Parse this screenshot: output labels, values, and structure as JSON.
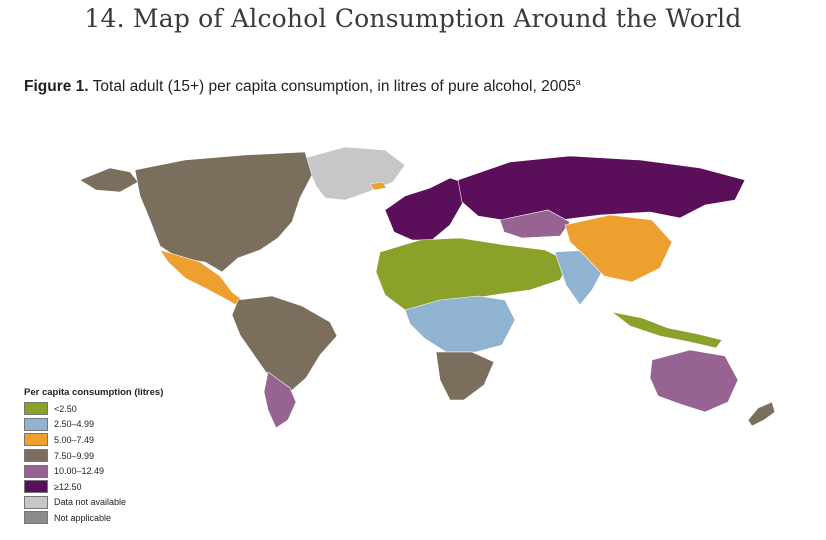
{
  "page": {
    "title": "14. Map of Alcohol Consumption Around the World"
  },
  "figure": {
    "label": "Figure 1.",
    "caption": " Total adult (15+) per capita consumption, in litres of pure alcohol, 2005",
    "footnote_mark": "a"
  },
  "legend": {
    "title": "Per capita consumption (litres)",
    "items": [
      {
        "label": "<2.50",
        "color": "#8aa12a"
      },
      {
        "label": "2.50–4.99",
        "color": "#8fb3d0"
      },
      {
        "label": "5.00–7.49",
        "color": "#eda030"
      },
      {
        "label": "7.50–9.99",
        "color": "#7b6e5d"
      },
      {
        "label": "10.00–12.49",
        "color": "#976392"
      },
      {
        "label": "≥12.50",
        "color": "#5b0f5a"
      },
      {
        "label": "Data not available",
        "color": "#c7c7c9"
      },
      {
        "label": "Not applicable",
        "color": "#8c8c8c"
      }
    ]
  },
  "map_regions": [
    {
      "name": "canada-usa",
      "category": "7.50–9.99"
    },
    {
      "name": "alaska",
      "category": "7.50–9.99"
    },
    {
      "name": "greenland",
      "category": "Data not available"
    },
    {
      "name": "mexico",
      "category": "5.00–7.49"
    },
    {
      "name": "south-america",
      "category": "7.50–9.99"
    },
    {
      "name": "argentina-chile",
      "category": "10.00–12.49"
    },
    {
      "name": "western-europe",
      "category": "≥12.50"
    },
    {
      "name": "russia",
      "category": "≥12.50"
    },
    {
      "name": "kazakhstan",
      "category": "10.00–12.49"
    },
    {
      "name": "north-africa-middle-east",
      "category": "<2.50"
    },
    {
      "name": "central-africa",
      "category": "2.50–4.99"
    },
    {
      "name": "southern-africa",
      "category": "7.50–9.99"
    },
    {
      "name": "india",
      "category": "2.50–4.99"
    },
    {
      "name": "china",
      "category": "5.00–7.49"
    },
    {
      "name": "indonesia",
      "category": "<2.50"
    },
    {
      "name": "australia",
      "category": "10.00–12.49"
    },
    {
      "name": "new-zealand",
      "category": "7.50–9.99"
    },
    {
      "name": "iceland",
      "category": "5.00–7.49"
    }
  ]
}
